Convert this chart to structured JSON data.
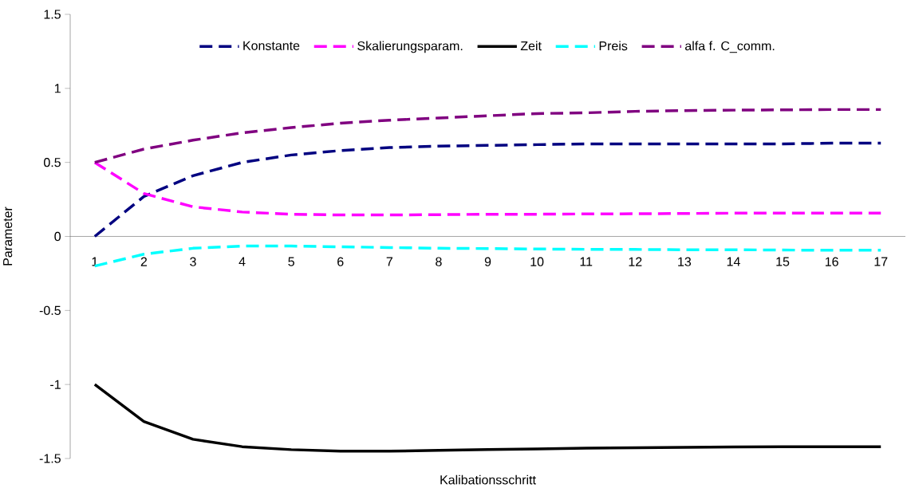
{
  "chart_data": {
    "type": "line",
    "xlabel": "Kalibationsschritt",
    "ylabel": "Parameter",
    "categories": [
      "1",
      "2",
      "3",
      "4",
      "5",
      "6",
      "7",
      "8",
      "9",
      "10",
      "11",
      "12",
      "13",
      "14",
      "15",
      "16",
      "17"
    ],
    "ylim": [
      -1.5,
      1.5
    ],
    "yticks": [
      -1.5,
      -1,
      -0.5,
      0,
      0.5,
      1,
      1.5
    ],
    "grid": false,
    "legend": "top",
    "marker": "none",
    "series": [
      {
        "name": "Konstante",
        "color": "#000080",
        "line_style": "dashed",
        "values": [
          0,
          0.27,
          0.41,
          0.5,
          0.55,
          0.58,
          0.6,
          0.61,
          0.615,
          0.62,
          0.625,
          0.625,
          0.625,
          0.625,
          0.625,
          0.63,
          0.63
        ]
      },
      {
        "name": "Skalierungsparam.",
        "color": "#ff00ff",
        "line_style": "dashed",
        "values": [
          0.5,
          0.29,
          0.2,
          0.165,
          0.15,
          0.145,
          0.145,
          0.147,
          0.15,
          0.15,
          0.152,
          0.153,
          0.155,
          0.157,
          0.157,
          0.157,
          0.157
        ]
      },
      {
        "name": "Zeit",
        "color": "#000000",
        "line_style": "solid",
        "values": [
          -1,
          -1.25,
          -1.37,
          -1.42,
          -1.44,
          -1.45,
          -1.45,
          -1.445,
          -1.44,
          -1.435,
          -1.43,
          -1.427,
          -1.425,
          -1.422,
          -1.42,
          -1.42,
          -1.42
        ]
      },
      {
        "name": "Preis",
        "color": "#00ffff",
        "line_style": "dashed",
        "values": [
          -0.2,
          -0.12,
          -0.08,
          -0.065,
          -0.065,
          -0.07,
          -0.075,
          -0.08,
          -0.082,
          -0.085,
          -0.087,
          -0.088,
          -0.09,
          -0.09,
          -0.092,
          -0.093,
          -0.093
        ]
      },
      {
        "name": "alfa f. C_comm.",
        "color": "#800080",
        "line_style": "dashed",
        "values": [
          0.5,
          0.59,
          0.65,
          0.7,
          0.735,
          0.765,
          0.785,
          0.8,
          0.815,
          0.83,
          0.835,
          0.845,
          0.85,
          0.853,
          0.855,
          0.857,
          0.857
        ]
      }
    ]
  }
}
